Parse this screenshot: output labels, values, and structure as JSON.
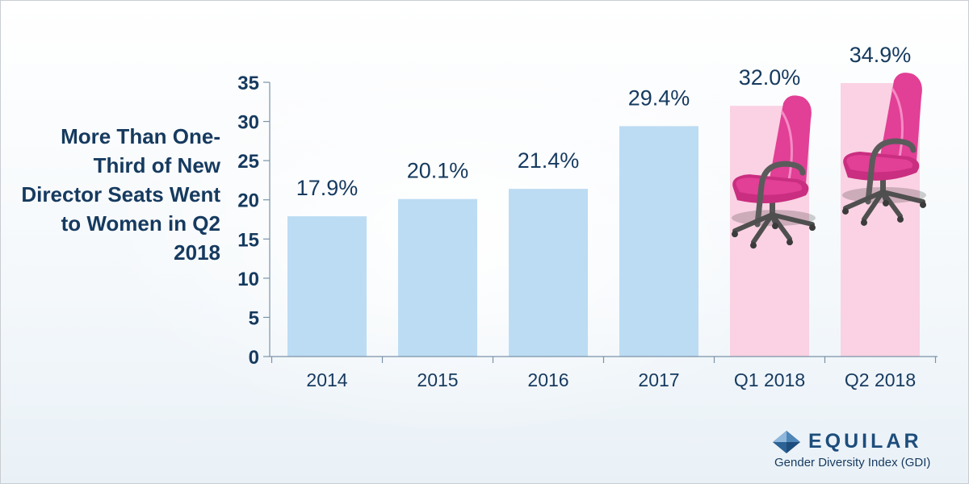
{
  "headline": "More Than One-Third of New Director Seats Went to Women in Q2 2018",
  "brand": {
    "name": "EQUILAR",
    "subtitle": "Gender Diversity Index (GDI)"
  },
  "colors": {
    "bar": "#bcdcf3",
    "highlight_bar": "#fad2e3",
    "text": "#163a5f",
    "axis": "#7b93a8",
    "chair": "#e23f96"
  },
  "icons": [
    "office-chair-icon",
    "equilar-diamond-icon"
  ],
  "chart_data": {
    "type": "bar",
    "categories": [
      "2014",
      "2015",
      "2016",
      "2017",
      "Q1 2018",
      "Q2 2018"
    ],
    "values": [
      17.9,
      20.1,
      21.4,
      29.4,
      32.0,
      34.9
    ],
    "data_labels": [
      "17.9%",
      "20.1%",
      "21.4%",
      "29.4%",
      "32.0%",
      "34.9%"
    ],
    "highlighted": [
      "Q1 2018",
      "Q2 2018"
    ],
    "ylim": [
      0,
      35
    ],
    "yticks": [
      0,
      5,
      10,
      15,
      20,
      25,
      30,
      35
    ],
    "grid": false,
    "legend": "none"
  }
}
